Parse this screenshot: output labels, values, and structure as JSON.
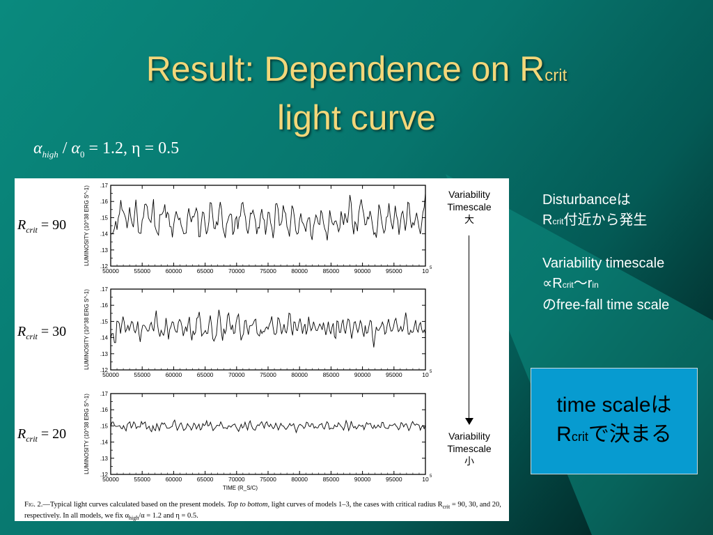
{
  "slide": {
    "title_line1_main": "Result: Dependence on R",
    "title_line1_sub": "crit",
    "title_line2": "light curve",
    "formula": {
      "alpha": "α",
      "high": "high",
      "slash": " /",
      "zero": "0",
      "rest": " = 1.2, η = 0.5"
    }
  },
  "figure": {
    "variability_top": [
      "Variability",
      "Timescale",
      "大"
    ],
    "variability_bottom": [
      "Variability",
      "Timescale",
      "小"
    ],
    "caption_fig": "Fig. 2.",
    "caption_text1": "—Typical light curves calculated based on the present models. ",
    "caption_em": "Top to bottom",
    "caption_text2": ", light curves of models 1–3, the cases with critical radius R",
    "caption_sub": "crit",
    "caption_text3": " = 90, 30, and 20, respectively. In all models, we fix α",
    "caption_sub2": "high",
    "caption_text4": "/α = 1.2 and η = 0.5."
  },
  "side": {
    "line1": "Disturbanceは",
    "line2_r": "R",
    "line2_sub": "crit",
    "line2_rest": "付近から発生",
    "line3": "Variability timescale",
    "line4_a": "∝R",
    "line4_sub1": "crit",
    "line4_b": "～r",
    "line4_sub2": "in",
    "line5": "のfree-fall time scale"
  },
  "callout": {
    "line1": "time scaleは",
    "line2_r": "R",
    "line2_sub": "crit",
    "line2_rest": "で決まる"
  },
  "chart_data": [
    {
      "type": "line",
      "panel_label": {
        "r": "R",
        "sub": "crit",
        "eq": " = 90"
      },
      "xlabel": "TIME (R_S/C)",
      "ylabel": "LUMINOSITY (10^38 ERG S^-1)",
      "x_ticks": [
        "50000",
        "55000",
        "60000",
        "65000",
        "70000",
        "75000",
        "80000",
        "85000",
        "90000",
        "95000",
        "10"
      ],
      "x_exponent": "5",
      "y_ticks": [
        ".12",
        ".13",
        ".14",
        ".15",
        ".16",
        ".17"
      ],
      "xlim": [
        50000,
        100000
      ],
      "ylim": [
        0.12,
        0.17
      ],
      "series": [
        {
          "values": [
            0.1405,
            0.1399,
            0.1409,
            0.1434,
            0.1479,
            0.1425,
            0.1498,
            0.1526,
            0.1608,
            0.1549,
            0.1538,
            0.1518,
            0.1493,
            0.1435,
            0.1487,
            0.1564,
            0.15,
            0.1464,
            0.1441,
            0.1525,
            0.1611,
            0.152,
            0.1411,
            0.1403,
            0.1403,
            0.1484,
            0.1503,
            0.1581,
            0.1584,
            0.1568,
            0.1498,
            0.1482,
            0.147,
            0.1545,
            0.1614,
            0.1451,
            0.1424,
            0.1405,
            0.1392,
            0.1519,
            0.1518,
            0.1524,
            0.1542,
            0.1582,
            0.1498,
            0.1533,
            0.1519,
            0.1444,
            0.1443,
            0.1378,
            0.1454,
            0.1505,
            0.1539,
            0.1509,
            0.1487,
            0.1497,
            0.1451,
            0.1429,
            0.14,
            0.1402,
            0.1405,
            0.1509,
            0.1558,
            0.1509,
            0.1472,
            0.1507,
            0.1504,
            0.1529,
            0.1559,
            0.153,
            0.1382,
            0.1382,
            0.1472,
            0.1535,
            0.1528,
            0.1455,
            0.1398,
            0.1421,
            0.1475,
            0.1593,
            0.1589,
            0.151,
            0.1435,
            0.1431,
            0.1474,
            0.1453,
            0.1542,
            0.1597,
            0.1554,
            0.1441,
            0.1408,
            0.1375,
            0.1458,
            0.1482,
            0.151,
            0.1523,
            0.1519,
            0.1394,
            0.1415,
            0.1489,
            0.1506,
            0.1429,
            0.1502,
            0.1509,
            0.1586,
            0.1594,
            0.1536,
            0.1504,
            0.1429,
            0.1401,
            0.1447,
            0.1529,
            0.1523,
            0.1546,
            0.1515,
            0.1476,
            0.1398,
            0.144,
            0.1435,
            0.1513,
            0.1553,
            0.1497,
            0.1484,
            0.1395,
            0.1454,
            0.1533,
            0.1531,
            0.1468,
            0.1438,
            0.1373,
            0.1435,
            0.1584,
            0.1587,
            0.1552,
            0.1452,
            0.1456,
            0.1479,
            0.1576,
            0.1539,
            0.1525,
            0.1444,
            0.1422,
            0.1383,
            0.1475,
            0.1574,
            0.1555,
            0.1497,
            0.1419,
            0.1398,
            0.1405,
            0.1485,
            0.1526,
            0.1474,
            0.1462,
            0.1442,
            0.1413,
            0.1474,
            0.1498,
            0.1499,
            0.1392,
            0.1362,
            0.1441,
            0.1477,
            0.1516,
            0.1497,
            0.1462,
            0.1457,
            0.1545,
            0.1525,
            0.1468,
            0.1431,
            0.1411,
            0.1359,
            0.1445,
            0.1545,
            0.1497,
            0.1465,
            0.1455,
            0.1477,
            0.148,
            0.1452,
            0.1413,
            0.1436,
            0.1539,
            0.1496,
            0.1455,
            0.1527,
            0.1493,
            0.1468,
            0.1533,
            0.164,
            0.159,
            0.1459,
            0.1397,
            0.1474,
            0.1458,
            0.1416,
            0.1528,
            0.1576,
            0.1613,
            0.1561,
            0.1522,
            0.1455,
            0.1458,
            0.1503,
            0.1492,
            0.1541,
            0.1505,
            0.1451,
            0.1396,
            0.1407,
            0.1376,
            0.1453,
            0.1581,
            0.1553,
            0.1491,
            0.1441,
            0.1405,
            0.1423,
            0.1502,
            0.1508,
            0.1589,
            0.151,
            0.1463,
            0.1428,
            0.1486,
            0.1573,
            0.1514,
            0.1483,
            0.1394,
            0.1458,
            0.1524,
            0.1539,
            0.1486,
            0.1419,
            0.1479,
            0.1595,
            0.1588,
            0.1486,
            0.1436,
            0.1469,
            0.1454,
            0.1493,
            0.153,
            0.1483,
            0.1433,
            0.1399,
            0.1462,
            0.1533,
            0.1563,
            0.1651
          ]
        }
      ]
    },
    {
      "type": "line",
      "panel_label": {
        "r": "R",
        "sub": "crit",
        "eq": " = 30"
      },
      "xlabel": "TIME (R_S/C)",
      "ylabel": "LUMINOSITY (10^38 ERG S^-1)",
      "x_ticks": [
        "50000",
        "55000",
        "60000",
        "65000",
        "70000",
        "75000",
        "80000",
        "85000",
        "90000",
        "95000",
        "10"
      ],
      "x_exponent": "5",
      "y_ticks": [
        ".12",
        ".13",
        ".14",
        ".15",
        ".16",
        ".17"
      ],
      "xlim": [
        50000,
        100000
      ],
      "ylim": [
        0.12,
        0.17
      ],
      "series": [
        {
          "values": [
            0.1397,
            0.1425,
            0.1425,
            0.1369,
            0.1369,
            0.1501,
            0.15,
            0.1487,
            0.1425,
            0.1483,
            0.153,
            0.1496,
            0.1435,
            0.1452,
            0.1475,
            0.1445,
            0.1471,
            0.15,
            0.1492,
            0.1445,
            0.143,
            0.1454,
            0.15,
            0.1423,
            0.1373,
            0.1436,
            0.1475,
            0.1477,
            0.1469,
            0.1454,
            0.144,
            0.1442,
            0.1478,
            0.1494,
            0.1459,
            0.144,
            0.1512,
            0.1567,
            0.1485,
            0.1434,
            0.1406,
            0.1445,
            0.1426,
            0.1414,
            0.1444,
            0.1521,
            0.1465,
            0.1389,
            0.145,
            0.1468,
            0.1498,
            0.1494,
            0.1455,
            0.1436,
            0.1433,
            0.1492,
            0.1512,
            0.15,
            0.1466,
            0.141,
            0.1439,
            0.1468,
            0.1437,
            0.149,
            0.1528,
            0.1429,
            0.1383,
            0.1442,
            0.1418,
            0.1432,
            0.1519,
            0.1525,
            0.1559,
            0.1497,
            0.141,
            0.1421,
            0.1431,
            0.1444,
            0.1425,
            0.1427,
            0.1491,
            0.1537,
            0.1478,
            0.1393,
            0.1378,
            0.1398,
            0.1418,
            0.1508,
            0.1572,
            0.1527,
            0.1434,
            0.1381,
            0.1455,
            0.1425,
            0.1449,
            0.1536,
            0.1551,
            0.1483,
            0.1448,
            0.1479,
            0.1425,
            0.1429,
            0.1494,
            0.1528,
            0.1545,
            0.1458,
            0.1383,
            0.1406,
            0.1423,
            0.1503,
            0.1507,
            0.1457,
            0.1418,
            0.1472,
            0.1474,
            0.1476,
            0.1488,
            0.1508,
            0.1514,
            0.1429,
            0.1417,
            0.141,
            0.1447,
            0.1425,
            0.1439,
            0.1436,
            0.1458,
            0.1466,
            0.1452,
            0.1479,
            0.1497,
            0.1531,
            0.1469,
            0.1422,
            0.1419,
            0.1432,
            0.1523,
            0.1515,
            0.1474,
            0.1422,
            0.1449,
            0.1483,
            0.1438,
            0.1429,
            0.1476,
            0.1551,
            0.1546,
            0.1449,
            0.1414,
            0.1497,
            0.1495,
            0.1447,
            0.1443,
            0.1489,
            0.1518,
            0.1479,
            0.1424,
            0.1463,
            0.1484,
            0.1419,
            0.1448,
            0.1529,
            0.1476,
            0.1443,
            0.146,
            0.1498,
            0.1471,
            0.1445,
            0.1443,
            0.1463,
            0.1484,
            0.1471,
            0.1448,
            0.1493,
            0.1458,
            0.1416,
            0.1452,
            0.1498,
            0.1447,
            0.1422,
            0.1464,
            0.1488,
            0.1406,
            0.1395,
            0.1503,
            0.1498,
            0.1432,
            0.1432,
            0.1487,
            0.1511,
            0.1446,
            0.1425,
            0.1479,
            0.1515,
            0.1508,
            0.1449,
            0.1393,
            0.1442,
            0.1494,
            0.1498,
            0.146,
            0.1432,
            0.146,
            0.1505,
            0.1486,
            0.1433,
            0.1405,
            0.1475,
            0.1427,
            0.143,
            0.1468,
            0.1506,
            0.15,
            0.1401,
            0.1339,
            0.1409,
            0.1466,
            0.1446,
            0.1444,
            0.1459,
            0.1472,
            0.1496,
            0.1475,
            0.1421,
            0.1432,
            0.1482,
            0.1515,
            0.1471,
            0.144,
            0.1442,
            0.1465,
            0.1505,
            0.1519,
            0.1474,
            0.1437,
            0.1447,
            0.1468,
            0.1439,
            0.1452,
            0.1505,
            0.1555,
            0.1503,
            0.1422,
            0.142,
            0.1446,
            0.1431,
            0.1435,
            0.1472,
            0.1508,
            0.1451,
            0.1434,
            0.1479,
            0.1493,
            0.145,
            0.1431,
            0.1447,
            0.1425
          ]
        }
      ]
    },
    {
      "type": "line",
      "panel_label": {
        "r": "R",
        "sub": "crit",
        "eq": " = 20"
      },
      "xlabel": "TIME (R_S/C)",
      "ylabel": "LUMINOSITY (10^38 ERG S^-1)",
      "x_ticks": [
        "50000",
        "55000",
        "60000",
        "65000",
        "70000",
        "75000",
        "80000",
        "85000",
        "90000",
        "95000",
        "10"
      ],
      "x_exponent": "5",
      "y_ticks": [
        ".12",
        ".13",
        ".14",
        ".15",
        ".16",
        ".17"
      ],
      "xlim": [
        50000,
        100000
      ],
      "ylim": [
        0.12,
        0.17
      ],
      "series": [
        {
          "values": [
            0.1495,
            0.1523,
            0.1524,
            0.1503,
            0.1497,
            0.1497,
            0.1499,
            0.1502,
            0.1487,
            0.1482,
            0.1502,
            0.1484,
            0.1469,
            0.1509,
            0.1518,
            0.1525,
            0.1488,
            0.15,
            0.1525,
            0.1514,
            0.1484,
            0.1495,
            0.1494,
            0.1493,
            0.1527,
            0.151,
            0.1518,
            0.1524,
            0.1481,
            0.1488,
            0.1498,
            0.1474,
            0.1464,
            0.1501,
            0.1478,
            0.1471,
            0.1514,
            0.1495,
            0.1471,
            0.1502,
            0.1519,
            0.151,
            0.1518,
            0.1503,
            0.1486,
            0.1486,
            0.1487,
            0.1493,
            0.1496,
            0.1523,
            0.1536,
            0.1503,
            0.1473,
            0.1488,
            0.1509,
            0.1519,
            0.1498,
            0.1472,
            0.1478,
            0.1488,
            0.1514,
            0.1501,
            0.1494,
            0.1474,
            0.149,
            0.1517,
            0.1507,
            0.1481,
            0.1497,
            0.1511,
            0.1475,
            0.1482,
            0.1514,
            0.1502,
            0.1508,
            0.1532,
            0.15,
            0.1503,
            0.1523,
            0.1497,
            0.1471,
            0.1482,
            0.1491,
            0.1504,
            0.1503,
            0.1501,
            0.1525,
            0.1508,
            0.1486,
            0.1489,
            0.1488,
            0.1482,
            0.15,
            0.1499,
            0.1492,
            0.1503,
            0.1508,
            0.1512,
            0.1493,
            0.1479,
            0.1466,
            0.1488,
            0.151,
            0.1487,
            0.1496,
            0.1523,
            0.1497,
            0.1475,
            0.1514,
            0.1531,
            0.1503,
            0.1484,
            0.1476,
            0.1474,
            0.1497,
            0.1507,
            0.1502,
            0.1516,
            0.1526,
            0.1507,
            0.1486,
            0.1516,
            0.1526,
            0.1504,
            0.1495,
            0.1511,
            0.1496,
            0.1483,
            0.1492,
            0.1517,
            0.1499,
            0.1475,
            0.1494,
            0.1516,
            0.1501,
            0.15,
            0.1487,
            0.1478,
            0.1488,
            0.15,
            0.1515,
            0.1501,
            0.1505,
            0.1514,
            0.1486,
            0.1459,
            0.1483,
            0.1503,
            0.151,
            0.1504,
            0.1499,
            0.1484,
            0.1494,
            0.1523,
            0.1519,
            0.1499,
            0.1495,
            0.1514,
            0.1512,
            0.1486,
            0.1495,
            0.1488,
            0.1488,
            0.1506,
            0.1509,
            0.1515,
            0.1489,
            0.148,
            0.1505,
            0.1526,
            0.1516,
            0.1479,
            0.1486,
            0.1484,
            0.1483,
            0.1506,
            0.1496,
            0.1495,
            0.152,
            0.151,
            0.1498,
            0.149,
            0.1474,
            0.1498,
            0.1533,
            0.1511,
            0.1471,
            0.1491,
            0.1529,
            0.1503,
            0.1488,
            0.1497,
            0.1481,
            0.1491,
            0.1507,
            0.1501,
            0.1497,
            0.1504,
            0.1477,
            0.1499,
            0.1521,
            0.151,
            0.1513,
            0.1516,
            0.1493,
            0.1484,
            0.1504,
            0.1486,
            0.1493,
            0.1506,
            0.1494,
            0.149,
            0.1522,
            0.1521,
            0.1493,
            0.1486,
            0.1485,
            0.1484,
            0.1506,
            0.1503,
            0.1502,
            0.1507,
            0.1514,
            0.1501,
            0.1492,
            0.1476,
            0.1488,
            0.1521,
            0.1514,
            0.1494,
            0.1509,
            0.1513,
            0.1495,
            0.1471,
            0.1486,
            0.1512,
            0.1527,
            0.1512,
            0.1504,
            0.1512,
            0.1508,
            0.1505,
            0.1474,
            0.1493,
            0.1503,
            0.1483,
            0.1503
          ]
        }
      ]
    }
  ]
}
